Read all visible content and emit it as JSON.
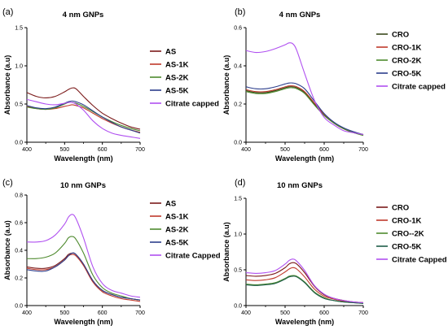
{
  "chart_data": [
    {
      "type": "line",
      "panel_label": "(a)",
      "title": "4 nm GNPs",
      "xlabel": "Wavelength (nm)",
      "ylabel": "Absorbance (a.u)",
      "xlim": [
        400,
        700
      ],
      "ylim": [
        0,
        1.5
      ],
      "xticks": [
        "400",
        "500",
        "600",
        "700"
      ],
      "yticks": [
        "0.0",
        "0.5",
        "1.0",
        "1.5"
      ],
      "x": [
        400,
        425,
        450,
        475,
        500,
        510,
        520,
        530,
        550,
        575,
        600,
        625,
        650,
        675,
        700
      ],
      "series": [
        {
          "name": "AS",
          "color": "#7b1a1a",
          "values": [
            0.65,
            0.6,
            0.58,
            0.6,
            0.66,
            0.69,
            0.71,
            0.7,
            0.6,
            0.48,
            0.38,
            0.31,
            0.25,
            0.2,
            0.17
          ]
        },
        {
          "name": "AS-1K",
          "color": "#c0392b",
          "values": [
            0.47,
            0.44,
            0.43,
            0.44,
            0.47,
            0.48,
            0.49,
            0.48,
            0.45,
            0.38,
            0.31,
            0.25,
            0.2,
            0.16,
            0.13
          ]
        },
        {
          "name": "AS-2K",
          "color": "#4e8a2e",
          "values": [
            0.46,
            0.44,
            0.43,
            0.45,
            0.5,
            0.52,
            0.52,
            0.51,
            0.47,
            0.4,
            0.33,
            0.27,
            0.22,
            0.18,
            0.15
          ]
        },
        {
          "name": "AS-5K",
          "color": "#2c3e8c",
          "values": [
            0.48,
            0.45,
            0.44,
            0.46,
            0.51,
            0.53,
            0.54,
            0.53,
            0.49,
            0.41,
            0.33,
            0.26,
            0.2,
            0.16,
            0.12
          ]
        },
        {
          "name": "Citrate capped",
          "color": "#b050f0",
          "values": [
            0.56,
            0.53,
            0.5,
            0.49,
            0.51,
            0.52,
            0.52,
            0.5,
            0.42,
            0.28,
            0.18,
            0.12,
            0.09,
            0.07,
            0.05
          ]
        }
      ]
    },
    {
      "type": "line",
      "panel_label": "(b)",
      "title": "4 nm GNPs",
      "xlabel": "Wavelength (nm)",
      "ylabel": "Absorbance (a.u)",
      "xlim": [
        400,
        700
      ],
      "ylim": [
        0,
        0.6
      ],
      "xticks": [
        "400",
        "500",
        "600",
        "700"
      ],
      "yticks": [
        "0.0",
        "0.2",
        "0.4",
        "0.6"
      ],
      "x": [
        400,
        425,
        450,
        475,
        500,
        510,
        520,
        530,
        550,
        575,
        600,
        625,
        650,
        675,
        700
      ],
      "series": [
        {
          "name": "CRO",
          "color": "#3a4a1c",
          "values": [
            0.27,
            0.26,
            0.26,
            0.27,
            0.285,
            0.29,
            0.29,
            0.285,
            0.26,
            0.2,
            0.14,
            0.1,
            0.07,
            0.05,
            0.04
          ]
        },
        {
          "name": "CRO-1K",
          "color": "#c0392b",
          "values": [
            0.275,
            0.265,
            0.265,
            0.275,
            0.29,
            0.295,
            0.295,
            0.29,
            0.265,
            0.205,
            0.145,
            0.1,
            0.07,
            0.05,
            0.04
          ]
        },
        {
          "name": "CRO-2K",
          "color": "#4e8a2e",
          "values": [
            0.265,
            0.255,
            0.255,
            0.265,
            0.28,
            0.285,
            0.285,
            0.28,
            0.255,
            0.195,
            0.14,
            0.1,
            0.07,
            0.05,
            0.035
          ]
        },
        {
          "name": "CRO-5K",
          "color": "#2c3e8c",
          "values": [
            0.29,
            0.28,
            0.28,
            0.29,
            0.305,
            0.31,
            0.31,
            0.305,
            0.28,
            0.215,
            0.15,
            0.105,
            0.075,
            0.055,
            0.04
          ]
        },
        {
          "name": "Citrate capped",
          "color": "#b050f0",
          "values": [
            0.48,
            0.47,
            0.475,
            0.49,
            0.51,
            0.52,
            0.515,
            0.48,
            0.36,
            0.22,
            0.13,
            0.09,
            0.06,
            0.05,
            0.04
          ]
        }
      ]
    },
    {
      "type": "line",
      "panel_label": "(c)",
      "title": "10 nm GNPs",
      "xlabel": "Wavelength (nm)",
      "ylabel": "Absorbance (a.u)",
      "xlim": [
        400,
        700
      ],
      "ylim": [
        0,
        0.8
      ],
      "xticks": [
        "400",
        "500",
        "600",
        "700"
      ],
      "yticks": [
        "0.0",
        "0.2",
        "0.4",
        "0.6",
        "0.8"
      ],
      "x": [
        400,
        425,
        450,
        475,
        500,
        510,
        520,
        530,
        550,
        575,
        600,
        625,
        650,
        675,
        700
      ],
      "series": [
        {
          "name": "AS",
          "color": "#7b1a1a",
          "values": [
            0.28,
            0.27,
            0.27,
            0.29,
            0.34,
            0.37,
            0.38,
            0.37,
            0.3,
            0.18,
            0.11,
            0.08,
            0.06,
            0.05,
            0.04
          ]
        },
        {
          "name": "AS-1K",
          "color": "#c0392b",
          "values": [
            0.27,
            0.26,
            0.26,
            0.28,
            0.33,
            0.36,
            0.37,
            0.36,
            0.29,
            0.17,
            0.1,
            0.07,
            0.05,
            0.04,
            0.03
          ]
        },
        {
          "name": "AS-2K",
          "color": "#4e8a2e",
          "values": [
            0.34,
            0.34,
            0.35,
            0.38,
            0.45,
            0.49,
            0.5,
            0.48,
            0.38,
            0.22,
            0.13,
            0.09,
            0.07,
            0.05,
            0.04
          ]
        },
        {
          "name": "AS-5K",
          "color": "#2c3e8c",
          "values": [
            0.26,
            0.25,
            0.25,
            0.28,
            0.33,
            0.36,
            0.38,
            0.37,
            0.3,
            0.18,
            0.11,
            0.08,
            0.06,
            0.05,
            0.04
          ]
        },
        {
          "name": "Citrate Capped",
          "color": "#b050f0",
          "values": [
            0.46,
            0.46,
            0.47,
            0.51,
            0.59,
            0.64,
            0.66,
            0.63,
            0.49,
            0.28,
            0.16,
            0.11,
            0.09,
            0.07,
            0.06
          ]
        }
      ]
    },
    {
      "type": "line",
      "panel_label": "(d)",
      "title": "10 nm GNPs",
      "xlabel": "Wavelength (nm)",
      "ylabel": "Absorbance (a.u)",
      "xlim": [
        400,
        700
      ],
      "ylim": [
        0,
        1.5
      ],
      "xticks": [
        "400",
        "500",
        "600",
        "700"
      ],
      "yticks": [
        "0.0",
        "0.5",
        "1.0",
        "1.5"
      ],
      "x": [
        400,
        425,
        450,
        475,
        500,
        510,
        520,
        530,
        550,
        575,
        600,
        625,
        650,
        675,
        700
      ],
      "series": [
        {
          "name": "CRO",
          "color": "#7b1a1a",
          "values": [
            0.42,
            0.41,
            0.42,
            0.45,
            0.53,
            0.58,
            0.6,
            0.58,
            0.46,
            0.27,
            0.15,
            0.1,
            0.07,
            0.05,
            0.04
          ]
        },
        {
          "name": "CRO-1K",
          "color": "#c0392b",
          "values": [
            0.36,
            0.35,
            0.36,
            0.39,
            0.47,
            0.51,
            0.53,
            0.51,
            0.4,
            0.23,
            0.13,
            0.09,
            0.06,
            0.05,
            0.04
          ]
        },
        {
          "name": "CRO--2K",
          "color": "#4e8a2e",
          "values": [
            0.3,
            0.29,
            0.3,
            0.32,
            0.38,
            0.41,
            0.42,
            0.41,
            0.33,
            0.19,
            0.11,
            0.07,
            0.05,
            0.04,
            0.03
          ]
        },
        {
          "name": "CRO-5K",
          "color": "#1f5e4a",
          "values": [
            0.29,
            0.28,
            0.29,
            0.31,
            0.37,
            0.4,
            0.41,
            0.4,
            0.32,
            0.18,
            0.1,
            0.07,
            0.05,
            0.04,
            0.03
          ]
        },
        {
          "name": "Citrate Capped",
          "color": "#b050f0",
          "values": [
            0.46,
            0.45,
            0.46,
            0.49,
            0.58,
            0.63,
            0.65,
            0.62,
            0.49,
            0.28,
            0.16,
            0.1,
            0.07,
            0.05,
            0.04
          ]
        }
      ]
    }
  ]
}
